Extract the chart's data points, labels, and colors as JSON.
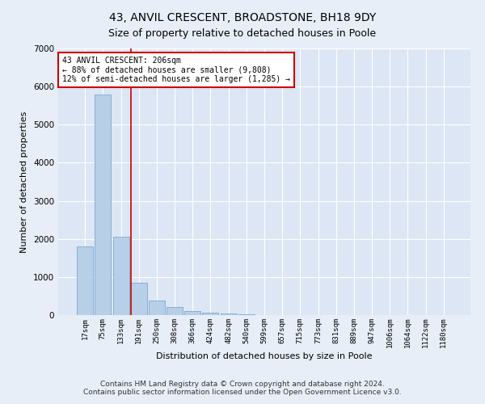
{
  "title": "43, ANVIL CRESCENT, BROADSTONE, BH18 9DY",
  "subtitle": "Size of property relative to detached houses in Poole",
  "xlabel": "Distribution of detached houses by size in Poole",
  "ylabel": "Number of detached properties",
  "bar_labels": [
    "17sqm",
    "75sqm",
    "133sqm",
    "191sqm",
    "250sqm",
    "308sqm",
    "366sqm",
    "424sqm",
    "482sqm",
    "540sqm",
    "599sqm",
    "657sqm",
    "715sqm",
    "773sqm",
    "831sqm",
    "889sqm",
    "947sqm",
    "1006sqm",
    "1064sqm",
    "1122sqm",
    "1180sqm"
  ],
  "bar_heights": [
    1800,
    5800,
    2060,
    850,
    375,
    215,
    100,
    68,
    50,
    18,
    10,
    5,
    3,
    2,
    1,
    1,
    0,
    0,
    0,
    0,
    0
  ],
  "bar_color": "#b8cfe8",
  "bar_edge_color": "#7aaad0",
  "vline_color": "#cc0000",
  "vline_index": 3,
  "annotation_text": "43 ANVIL CRESCENT: 206sqm\n← 88% of detached houses are smaller (9,808)\n12% of semi-detached houses are larger (1,285) →",
  "annotation_box_facecolor": "#ffffff",
  "annotation_box_edgecolor": "#cc0000",
  "ylim": [
    0,
    7000
  ],
  "yticks": [
    0,
    1000,
    2000,
    3000,
    4000,
    5000,
    6000,
    7000
  ],
  "fig_bg_color": "#e8eef8",
  "plot_bg_color": "#dce6f5",
  "grid_color": "#ffffff",
  "title_fontsize": 10,
  "subtitle_fontsize": 9,
  "axis_label_fontsize": 8,
  "tick_fontsize": 6.5,
  "footer_line1": "Contains HM Land Registry data © Crown copyright and database right 2024.",
  "footer_line2": "Contains public sector information licensed under the Open Government Licence v3.0.",
  "footer_fontsize": 6.5
}
